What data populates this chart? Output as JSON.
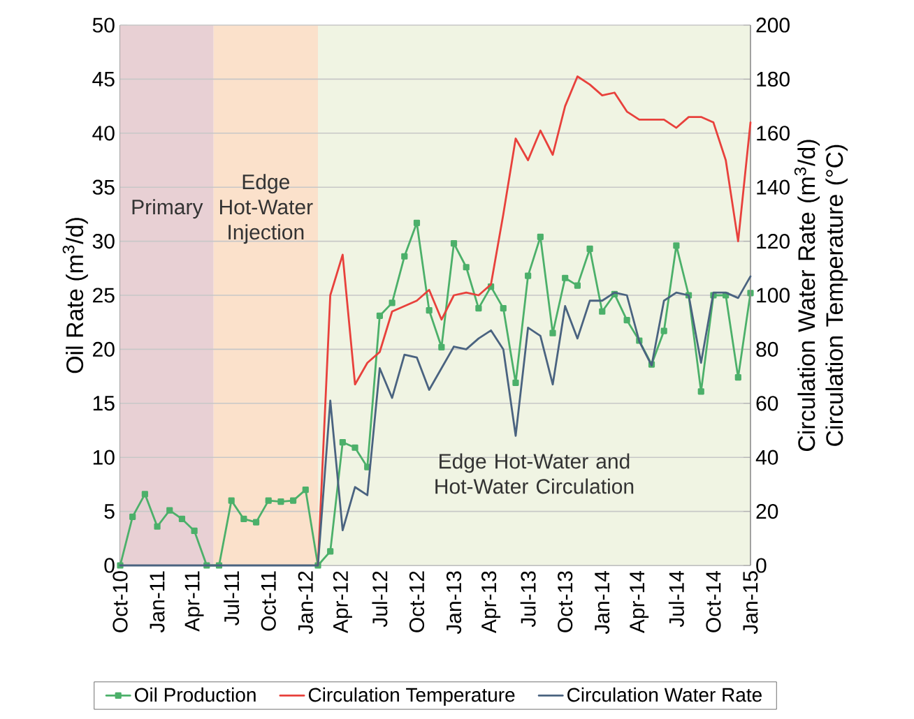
{
  "chart_data": {
    "type": "line",
    "x": [
      "2010-10",
      "2010-11",
      "2010-12",
      "2011-01",
      "2011-02",
      "2011-03",
      "2011-04",
      "2011-05",
      "2011-06",
      "2011-07",
      "2011-08",
      "2011-09",
      "2011-10",
      "2011-11",
      "2011-12",
      "2012-01",
      "2012-02",
      "2012-03",
      "2012-04",
      "2012-05",
      "2012-06",
      "2012-07",
      "2012-08",
      "2012-09",
      "2012-10",
      "2012-11",
      "2012-12",
      "2013-01",
      "2013-02",
      "2013-03",
      "2013-04",
      "2013-05",
      "2013-06",
      "2013-07",
      "2013-08",
      "2013-09",
      "2013-10",
      "2013-11",
      "2013-12",
      "2014-01",
      "2014-02",
      "2014-03",
      "2014-04",
      "2014-05",
      "2014-06",
      "2014-07",
      "2014-08",
      "2014-09",
      "2014-10",
      "2014-11",
      "2014-12",
      "2015-01"
    ],
    "series": [
      {
        "name": "Oil Production",
        "color": "#4cb06a",
        "marker": "square",
        "values": [
          0,
          4.5,
          6.6,
          3.6,
          5.1,
          4.3,
          3.2,
          0,
          0,
          6.0,
          4.3,
          4.0,
          6.0,
          5.9,
          6.0,
          7.0,
          0,
          1.3,
          11.4,
          10.9,
          9.1,
          23.1,
          24.3,
          28.6,
          31.7,
          23.6,
          20.2,
          29.8,
          27.6,
          23.8,
          25.8,
          23.8,
          16.9,
          26.8,
          30.4,
          21.5,
          26.6,
          25.9,
          29.3,
          23.5,
          25.1,
          22.7,
          20.8,
          18.6,
          21.7,
          29.6,
          25.0,
          16.1,
          25.0,
          25.0,
          17.4,
          25.2
        ]
      },
      {
        "name": "Circulation Temperature",
        "color": "#e8413c",
        "axis": "y2",
        "values": [
          null,
          null,
          null,
          null,
          null,
          null,
          null,
          null,
          null,
          null,
          null,
          null,
          null,
          null,
          null,
          null,
          0,
          100,
          115,
          67,
          75,
          79,
          94,
          96,
          98,
          102,
          91,
          100,
          101,
          100,
          104,
          130,
          158,
          150,
          161,
          152,
          170,
          181,
          178,
          174,
          175,
          168,
          165,
          165,
          165,
          162,
          166,
          166,
          164,
          150,
          120,
          164
        ]
      },
      {
        "name": "Circulation Water Rate",
        "color": "#4a6380",
        "axis": "y2",
        "values": [
          0,
          0,
          0,
          0,
          0,
          0,
          0,
          0,
          0,
          0,
          0,
          0,
          0,
          0,
          0,
          0,
          0,
          61,
          13,
          29,
          26,
          73,
          62,
          78,
          77,
          65,
          73,
          81,
          80,
          84,
          87,
          80,
          48,
          88,
          85,
          67,
          96,
          84,
          98,
          98,
          101,
          100,
          83,
          74,
          98,
          101,
          100,
          75,
          101,
          101,
          99,
          107
        ]
      }
    ],
    "xlim": [
      "2010-10",
      "2015-01"
    ],
    "xticks": [
      {
        "value": "2010-10",
        "label": "Oct-10"
      },
      {
        "value": "2011-01",
        "label": "Jan-11"
      },
      {
        "value": "2011-04",
        "label": "Apr-11"
      },
      {
        "value": "2011-07",
        "label": "Jul-11"
      },
      {
        "value": "2011-10",
        "label": "Oct-11"
      },
      {
        "value": "2012-01",
        "label": "Jan-12"
      },
      {
        "value": "2012-04",
        "label": "Apr-12"
      },
      {
        "value": "2012-07",
        "label": "Jul-12"
      },
      {
        "value": "2012-10",
        "label": "Oct-12"
      },
      {
        "value": "2013-01",
        "label": "Jan-13"
      },
      {
        "value": "2013-04",
        "label": "Apr-13"
      },
      {
        "value": "2013-07",
        "label": "Jul-13"
      },
      {
        "value": "2013-10",
        "label": "Oct-13"
      },
      {
        "value": "2014-01",
        "label": "Jan-14"
      },
      {
        "value": "2014-04",
        "label": "Apr-14"
      },
      {
        "value": "2014-07",
        "label": "Jul-14"
      },
      {
        "value": "2014-10",
        "label": "Oct-14"
      },
      {
        "value": "2015-01",
        "label": "Jan-15"
      }
    ],
    "ylim": [
      0,
      50
    ],
    "yticks": [
      0,
      5,
      10,
      15,
      20,
      25,
      30,
      35,
      40,
      45,
      50
    ],
    "y2lim": [
      0,
      200
    ],
    "y2ticks": [
      0,
      20,
      40,
      60,
      80,
      100,
      120,
      140,
      160,
      180,
      200
    ],
    "ylabel": "Oil Rate (m$^{3}$/d)",
    "y2label": "Circulation Water Rate (m$^{3}$/d) Circulation Temperature (°C)",
    "grid": "y",
    "legend": "bottom",
    "bands": [
      {
        "axis": "x",
        "from": "2010-10",
        "to": "2011-05-18",
        "label": "Primary",
        "color": "#e8d0d4"
      },
      {
        "axis": "x",
        "from": "2011-05-18",
        "to": "2012-02",
        "label": "Edge Hot-Water Injection",
        "color": "#fbe1cb"
      },
      {
        "axis": "x",
        "from": "2012-02",
        "to": "2015-01",
        "label": "Edge Hot-Water and Hot-Water Circulation",
        "color": "#f0f4e3"
      }
    ]
  }
}
